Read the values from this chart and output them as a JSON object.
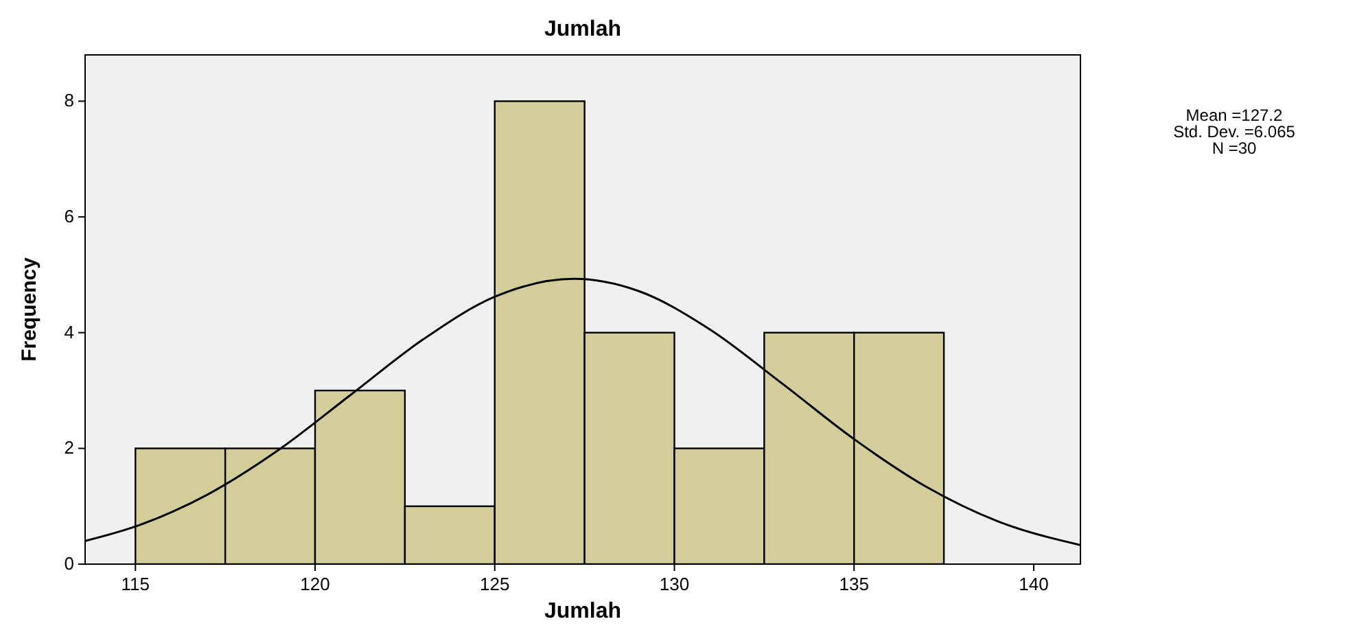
{
  "chart_data": {
    "type": "histogram",
    "title": "Jumlah",
    "xlabel": "Jumlah",
    "ylabel": "Frequency",
    "bins": [
      115,
      117.5,
      120,
      122.5,
      125,
      127.5,
      130,
      132.5,
      135,
      137.5
    ],
    "series": [
      {
        "values": [
          2,
          2,
          3,
          1,
          8,
          4,
          2,
          4,
          4
        ],
        "color": "#d3ce99"
      },
      {
        "type": "line",
        "color": "#000000",
        "x": [
          113.6,
          115,
          117,
          119,
          121,
          123,
          125,
          127.2,
          129,
          131,
          133,
          135,
          137,
          139,
          141.3
        ],
        "values": [
          0.4,
          0.65,
          1.2,
          1.98,
          2.93,
          3.88,
          4.62,
          4.93,
          4.72,
          4.05,
          3.12,
          2.16,
          1.34,
          0.74,
          0.33
        ]
      }
    ],
    "xlim": [
      113.6,
      141.3
    ],
    "xticks": [
      115,
      120,
      125,
      130,
      135,
      140
    ],
    "ylim": [
      0,
      8.8
    ],
    "yticks": [
      0,
      2,
      4,
      6,
      8
    ],
    "grid": false,
    "annotations": [
      "Mean =127.2",
      "Std. Dev. =6.065",
      "N =30"
    ]
  }
}
